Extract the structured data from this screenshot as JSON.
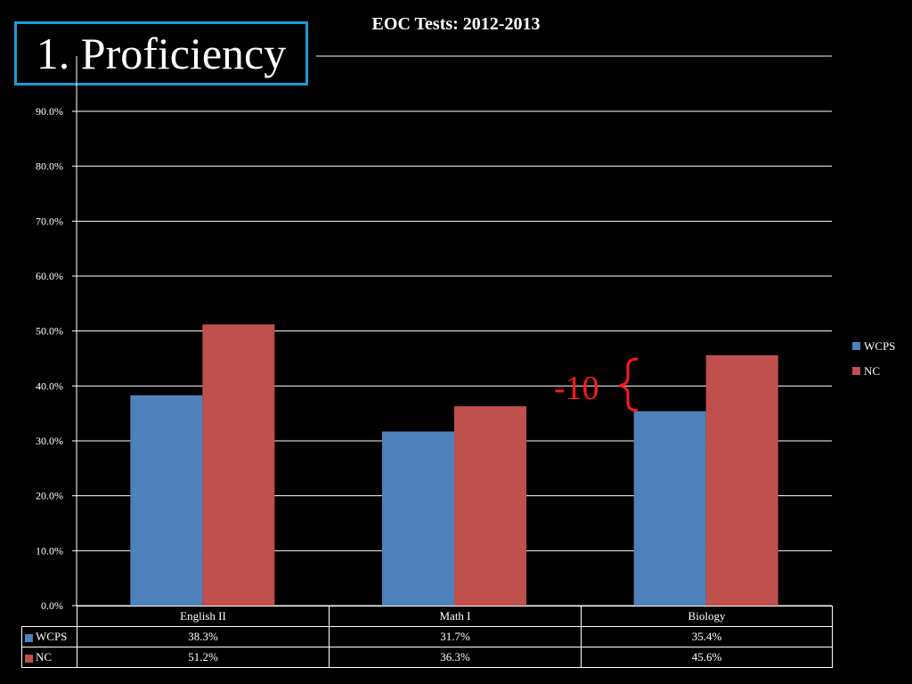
{
  "slide": {
    "title": "1. Proficiency"
  },
  "chart_data": {
    "type": "bar",
    "title": "EOC Tests:  2012-2013",
    "xlabel": "",
    "ylabel": "",
    "categories": [
      "English II",
      "Math I",
      "Biology"
    ],
    "series": [
      {
        "name": "WCPS",
        "values": [
          38.3,
          31.7,
          35.4
        ],
        "labels": [
          "38.3%",
          "31.7%",
          "35.4%"
        ],
        "color": "#4f81bd"
      },
      {
        "name": "NC",
        "values": [
          51.2,
          36.3,
          45.6
        ],
        "labels": [
          "51.2%",
          "36.3%",
          "45.6%"
        ],
        "color": "#c0504d"
      }
    ],
    "ylim": [
      0,
      90
    ],
    "yticks": [
      "0.0%",
      "10.0%",
      "20.0%",
      "30.0%",
      "40.0%",
      "50.0%",
      "60.0%",
      "70.0%",
      "80.0%",
      "90.0%"
    ],
    "grid": true,
    "legend_position": "right",
    "data_table": true,
    "annotation": {
      "text": "-10",
      "color": "#ff1a1a"
    }
  }
}
